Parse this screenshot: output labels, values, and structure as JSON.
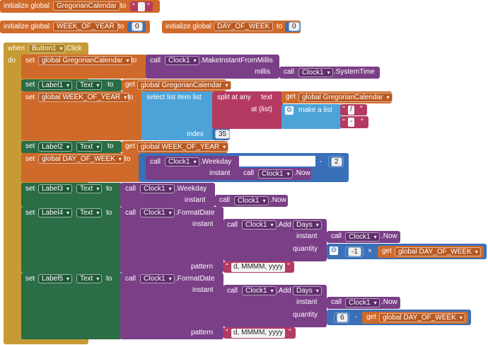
{
  "globals": {
    "initialize_label": "initialize global",
    "to_label": "to",
    "gregorian": {
      "name": "GregorianCalendar"
    },
    "week_of_year": {
      "name": "WEEK_OF_YEAR",
      "value": "0"
    },
    "day_of_week": {
      "name": "DAY_OF_WEEK",
      "value": "0"
    }
  },
  "event": {
    "when_label": "when",
    "do_label": "do",
    "component": "Button1",
    "event_name": ".Click"
  },
  "common": {
    "set_label": "set",
    "get_label": "get",
    "call_label": "call",
    "to_label": "to",
    "clock": "Clock1",
    "text_prop": "Text",
    "global_gregorian": "global GregorianCalendar",
    "global_week": "global WEEK_OF_YEAR",
    "global_day": "global DAY_OF_WEEK",
    "now": ".Now",
    "instant_label": "instant",
    "pattern_label": "pattern",
    "quantity_label": "quantity",
    "days": "Days",
    "add_method": ".Add",
    "format_date": ".FormatDate",
    "quote_open": "“",
    "quote_close": "”",
    "date_pattern": "d, MMMM, yyyy",
    "date_pattern_2": "d, MMMM, yyyy "
  },
  "stmt1": {
    "make_instant": ".MakeInstantFromMillis",
    "millis_label": "millis",
    "system_time": ".SystemTime"
  },
  "stmt2": {
    "label": "Label1"
  },
  "stmt3": {
    "select_list_item": "select list item  list",
    "split_at_any": "split at any",
    "text_label": "text",
    "at_list_label": "at (list)",
    "make_a_list": "make a list",
    "sep1": "/",
    "sep2": "-",
    "index_label": "index",
    "index_value": "35"
  },
  "stmt4": {
    "label": "Label2"
  },
  "stmt5": {
    "weekday": ".Weekday",
    "minus": "-",
    "subtract_value": "2"
  },
  "stmt6": {
    "label": "Label3"
  },
  "stmt7": {
    "label": "Label4",
    "negative_one": "-1",
    "times": "×"
  },
  "stmt8": {
    "label": "Label5",
    "six": "6",
    "minus": "-"
  }
}
